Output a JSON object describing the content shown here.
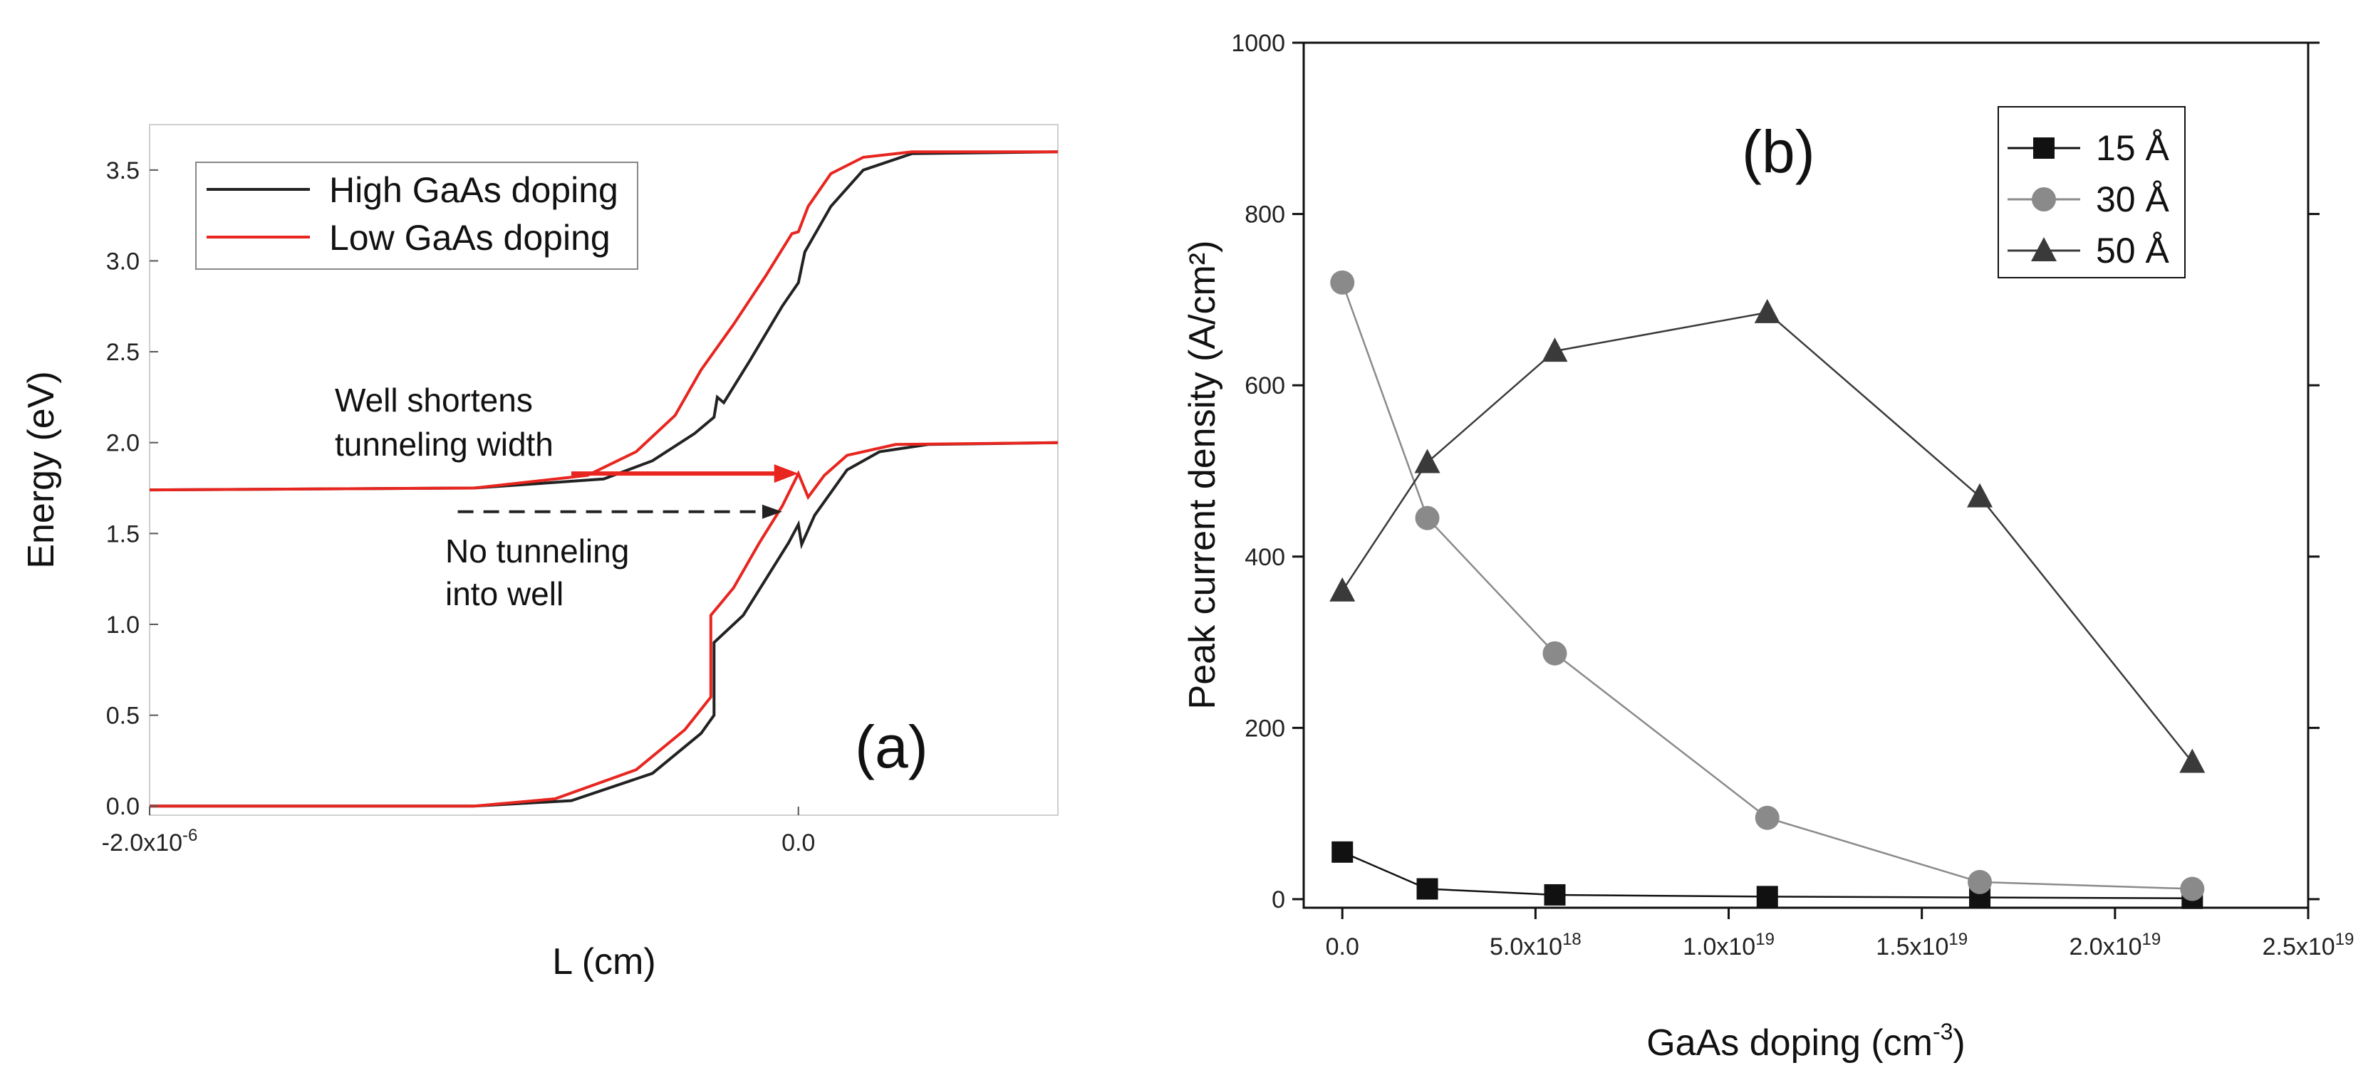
{
  "chart_data": [
    {
      "type": "line",
      "panel_label": "(a)",
      "xlabel": "L (cm)",
      "ylabel": "Energy (eV)",
      "xlim": [
        -2e-06,
        8e-07
      ],
      "ylim": [
        -0.05,
        3.75
      ],
      "x_ticks": [
        {
          "value": -2e-06,
          "label": "-2.0x10",
          "exp": "-6"
        },
        {
          "value": 0.0,
          "label": "0.0",
          "exp": ""
        }
      ],
      "y_ticks": [
        {
          "value": 0.0,
          "label": "0.0"
        },
        {
          "value": 0.5,
          "label": "0.5"
        },
        {
          "value": 1.0,
          "label": "1.0"
        },
        {
          "value": 1.5,
          "label": "1.5"
        },
        {
          "value": 2.0,
          "label": "2.0"
        },
        {
          "value": 2.5,
          "label": "2.5"
        },
        {
          "value": 3.0,
          "label": "3.0"
        },
        {
          "value": 3.5,
          "label": "3.5"
        }
      ],
      "legend": [
        {
          "label": "High GaAs doping",
          "color": "#222222"
        },
        {
          "label": "Low GaAs doping",
          "color": "#e8251f"
        }
      ],
      "series": [
        {
          "name": "High GaAs doping – lower band",
          "color": "#222222",
          "points": [
            [
              -2e-06,
              0.0
            ],
            [
              -1e-06,
              0.0
            ],
            [
              -7e-07,
              0.03
            ],
            [
              -4.5e-07,
              0.18
            ],
            [
              -3e-07,
              0.4
            ],
            [
              -2.6e-07,
              0.5
            ],
            [
              -2.6e-07,
              0.9
            ],
            [
              -1.7e-07,
              1.05
            ],
            [
              -1e-07,
              1.25
            ],
            [
              -3e-08,
              1.45
            ],
            [
              0.0,
              1.55
            ],
            [
              1e-08,
              1.44
            ],
            [
              5e-08,
              1.6
            ],
            [
              1.5e-07,
              1.85
            ],
            [
              2.5e-07,
              1.95
            ],
            [
              4e-07,
              1.99
            ],
            [
              8e-07,
              2.0
            ]
          ]
        },
        {
          "name": "High GaAs doping – upper band",
          "color": "#222222",
          "points": [
            [
              -2e-06,
              1.74
            ],
            [
              -1e-06,
              1.75
            ],
            [
              -6e-07,
              1.8
            ],
            [
              -4.5e-07,
              1.9
            ],
            [
              -3.2e-07,
              2.05
            ],
            [
              -2.6e-07,
              2.14
            ],
            [
              -2.5e-07,
              2.25
            ],
            [
              -2.3e-07,
              2.22
            ],
            [
              -1.5e-07,
              2.45
            ],
            [
              -5e-08,
              2.75
            ],
            [
              0.0,
              2.88
            ],
            [
              2e-08,
              3.05
            ],
            [
              1e-07,
              3.3
            ],
            [
              2e-07,
              3.5
            ],
            [
              3.5e-07,
              3.59
            ],
            [
              8e-07,
              3.6
            ]
          ]
        },
        {
          "name": "Low GaAs doping – lower band",
          "color": "#e8251f",
          "points": [
            [
              -2e-06,
              0.0
            ],
            [
              -1e-06,
              0.0
            ],
            [
              -7.5e-07,
              0.04
            ],
            [
              -5e-07,
              0.2
            ],
            [
              -3.5e-07,
              0.42
            ],
            [
              -2.7e-07,
              0.6
            ],
            [
              -2.7e-07,
              1.05
            ],
            [
              -2e-07,
              1.2
            ],
            [
              -1.2e-07,
              1.45
            ],
            [
              -5e-08,
              1.65
            ],
            [
              0.0,
              1.83
            ],
            [
              3e-08,
              1.7
            ],
            [
              8e-08,
              1.82
            ],
            [
              1.5e-07,
              1.93
            ],
            [
              3e-07,
              1.99
            ],
            [
              8e-07,
              2.0
            ]
          ]
        },
        {
          "name": "Low GaAs doping – upper band",
          "color": "#e8251f",
          "points": [
            [
              -2e-06,
              1.74
            ],
            [
              -1e-06,
              1.75
            ],
            [
              -6.5e-07,
              1.82
            ],
            [
              -5e-07,
              1.95
            ],
            [
              -3.8e-07,
              2.15
            ],
            [
              -3e-07,
              2.4
            ],
            [
              -2e-07,
              2.65
            ],
            [
              -1e-07,
              2.92
            ],
            [
              -2e-08,
              3.15
            ],
            [
              0.0,
              3.16
            ],
            [
              3e-08,
              3.3
            ],
            [
              1e-07,
              3.48
            ],
            [
              2e-07,
              3.57
            ],
            [
              3.5e-07,
              3.6
            ],
            [
              8e-07,
              3.6
            ]
          ]
        }
      ],
      "annotations": {
        "well_text": [
          "Well shortens",
          "tunneling width"
        ],
        "no_tunnel_text": [
          "No tunneling",
          "into well"
        ],
        "red_arrow": {
          "from": [
            -7e-07,
            1.83
          ],
          "to": [
            0.0,
            1.83
          ],
          "color": "#e8251f"
        },
        "dashed_arrow": {
          "from": [
            -1.05e-06,
            1.62
          ],
          "to": [
            -5e-08,
            1.62
          ],
          "color": "#222222"
        }
      }
    },
    {
      "type": "line",
      "panel_label": "(b)",
      "xlabel": "GaAs doping (cm",
      "xlabel_exp": "-3",
      "xlabel_close": ")",
      "ylabel": "Peak current density (A/cm²)",
      "xlim": [
        -1e+18,
        2.5e+19
      ],
      "ylim": [
        -10,
        1000
      ],
      "x_ticks": [
        {
          "value": 0.0,
          "label": "0.0",
          "exp": ""
        },
        {
          "value": 5e+18,
          "label": "5.0x10",
          "exp": "18"
        },
        {
          "value": 1e+19,
          "label": "1.0x10",
          "exp": "19"
        },
        {
          "value": 1.5e+19,
          "label": "1.5x10",
          "exp": "19"
        },
        {
          "value": 2e+19,
          "label": "2.0x10",
          "exp": "19"
        },
        {
          "value": 2.5e+19,
          "label": "2.5x10",
          "exp": "19"
        }
      ],
      "y_ticks": [
        {
          "value": 0,
          "label": "0"
        },
        {
          "value": 200,
          "label": "200"
        },
        {
          "value": 400,
          "label": "400"
        },
        {
          "value": 600,
          "label": "600"
        },
        {
          "value": 800,
          "label": "800"
        },
        {
          "value": 1000,
          "label": "1000"
        }
      ],
      "x": [
        0.0,
        2.2e+18,
        5.5e+18,
        1.1e+19,
        1.65e+19,
        2.2e+19
      ],
      "series": [
        {
          "name": "15 Å",
          "marker": "square",
          "color": "#111111",
          "values": [
            55,
            12,
            5,
            3,
            2,
            1
          ]
        },
        {
          "name": "30 Å",
          "marker": "circle",
          "color": "#8a8a8a",
          "values": [
            720,
            445,
            287,
            95,
            20,
            12
          ]
        },
        {
          "name": "50 Å",
          "marker": "triangle",
          "color": "#3a3a3a",
          "values": [
            360,
            510,
            640,
            685,
            470,
            160
          ]
        }
      ]
    }
  ]
}
